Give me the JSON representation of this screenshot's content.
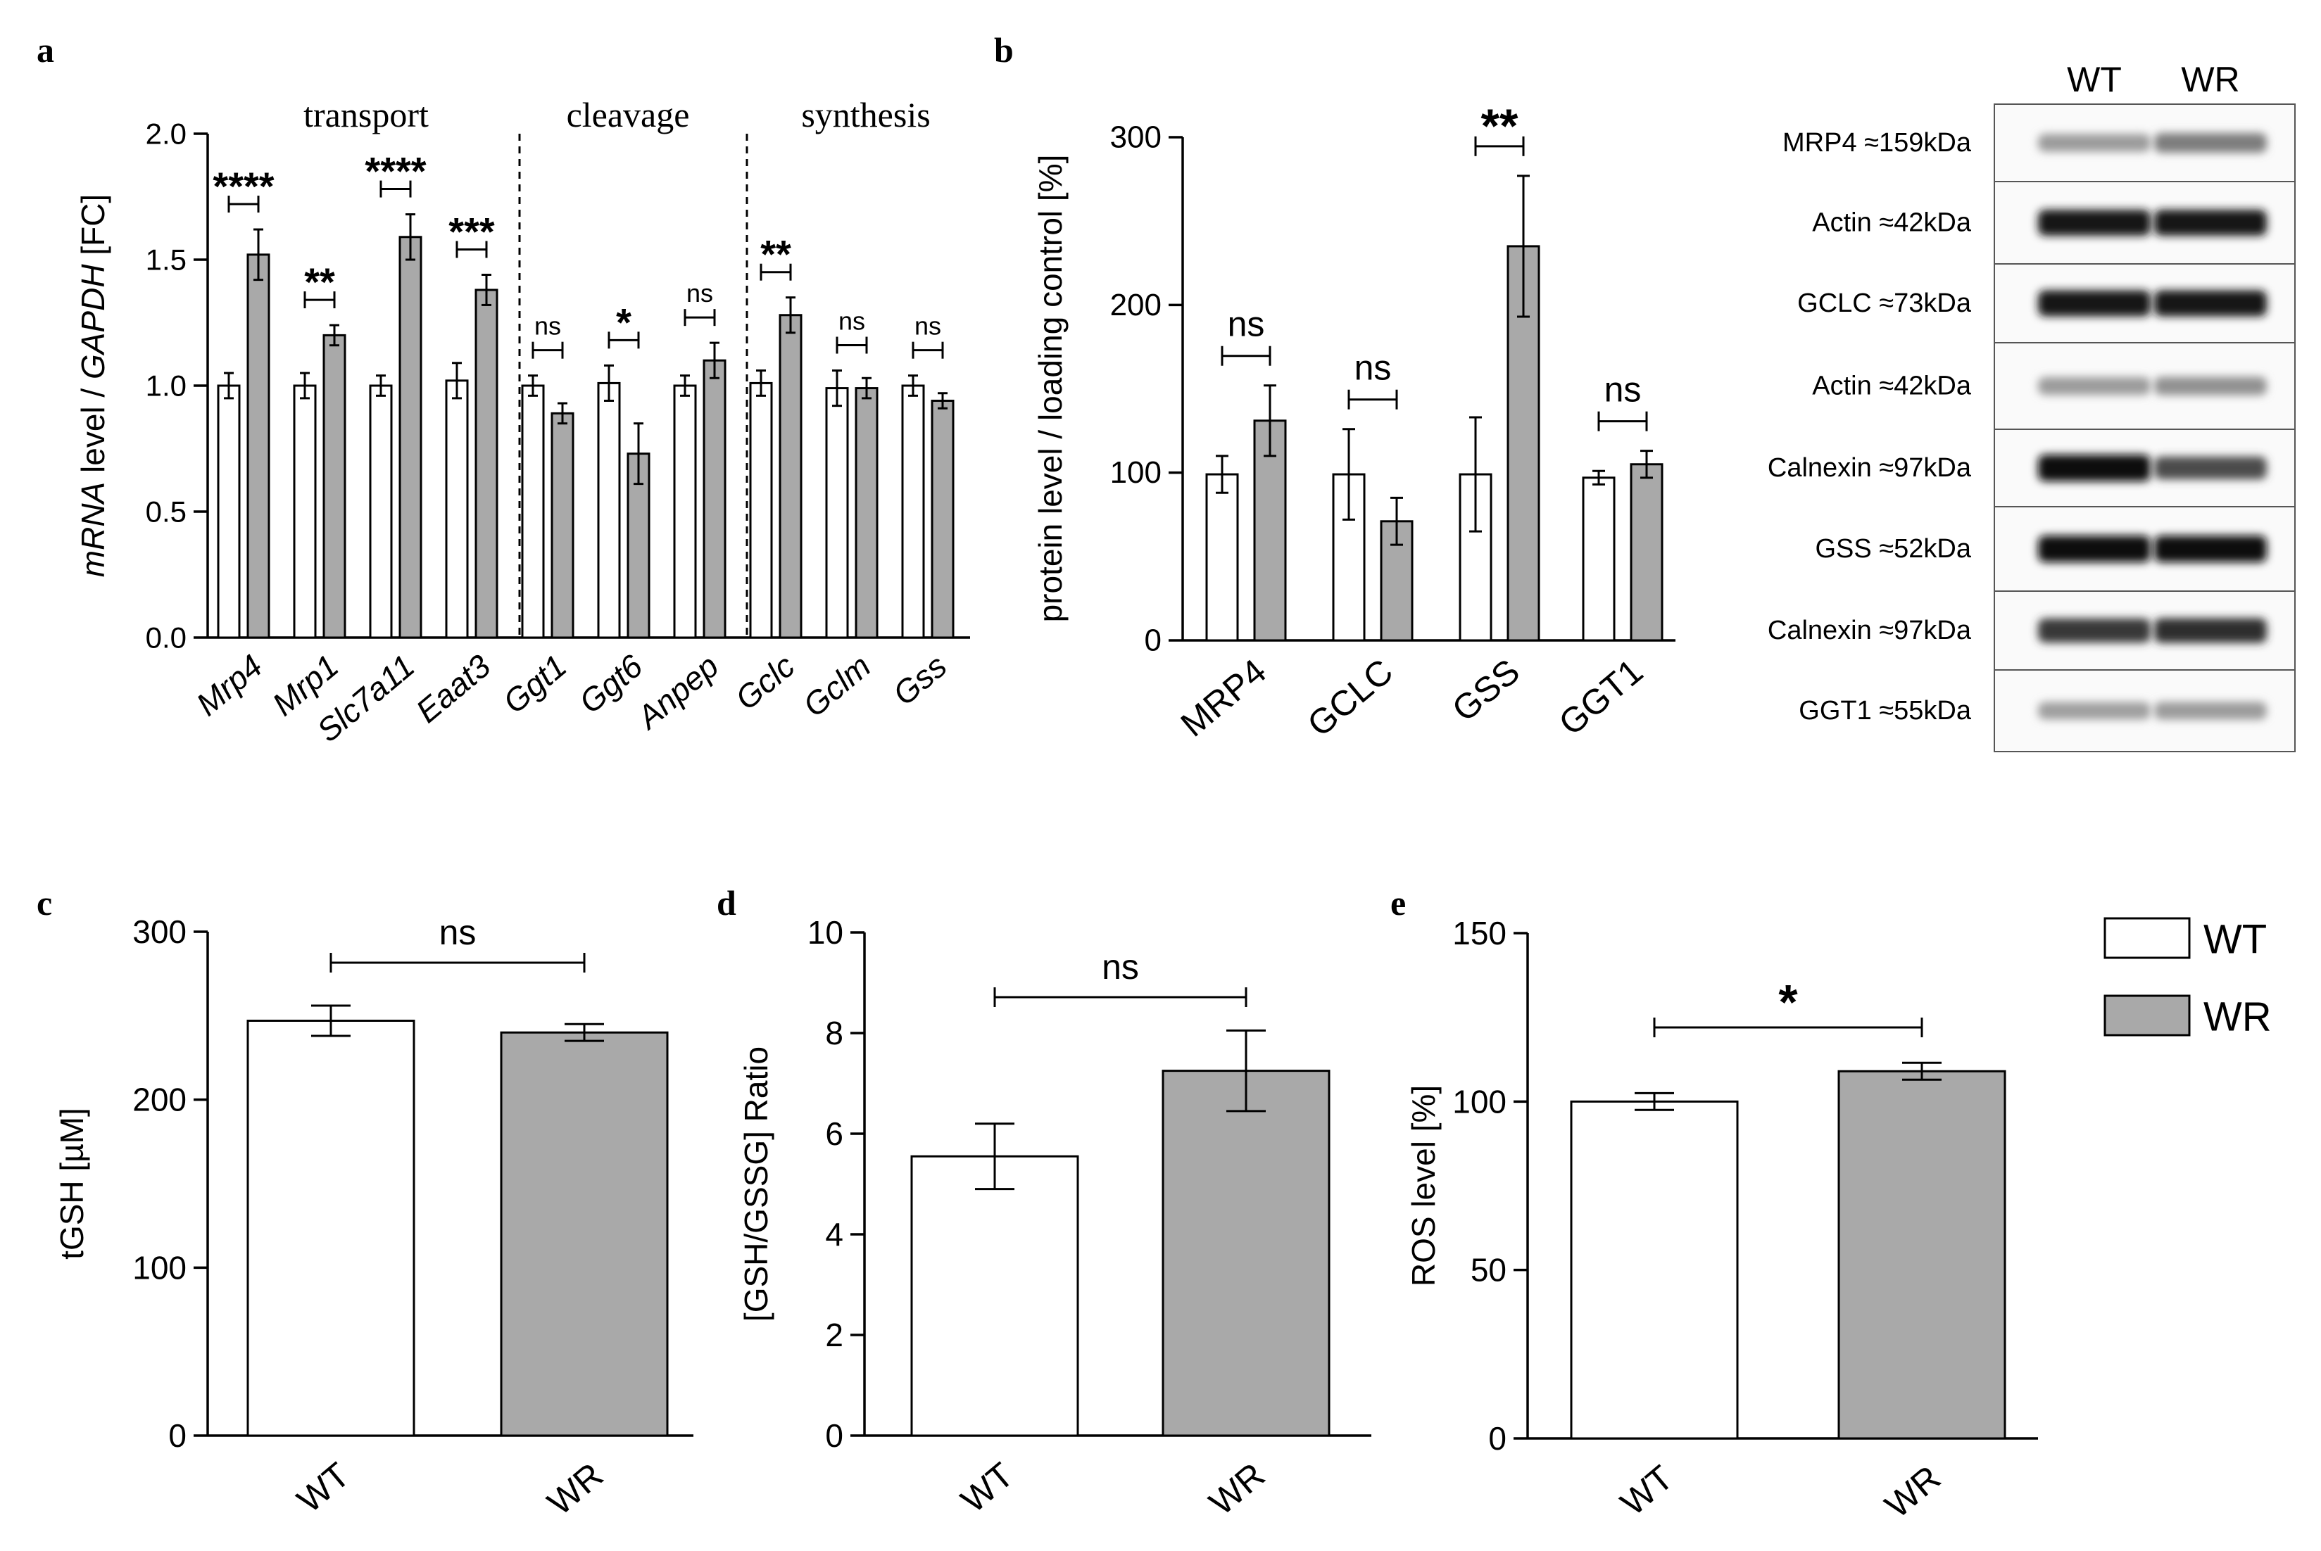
{
  "colors": {
    "wt": "#ffffff",
    "wr": "#a9a9a9",
    "axis": "#000000",
    "blot_bg": "#ededed",
    "band": "#1a1a1a"
  },
  "legend": [
    {
      "label": "WT",
      "color": "#ffffff"
    },
    {
      "label": "WR",
      "color": "#a9a9a9"
    }
  ],
  "chart_data": [
    {
      "panel": "a",
      "type": "bar",
      "ylabel_parts": [
        "mRNA",
        " level / ",
        "GAPDH",
        " [FC]"
      ],
      "ylim": [
        0,
        2.0
      ],
      "yticks": [
        "0.0",
        "0.5",
        "1.0",
        "1.5",
        "2.0"
      ],
      "groups": [
        "transport",
        "cleavage",
        "synthesis"
      ],
      "categories": [
        "Mrp4",
        "Mrp1",
        "Slc7a11",
        "Eaat3",
        "Ggt1",
        "Ggt6",
        "Anpep",
        "Gclc",
        "Gclm",
        "Gss"
      ],
      "series": [
        {
          "name": "WT",
          "values": [
            1.0,
            1.0,
            1.0,
            1.02,
            1.0,
            1.01,
            1.0,
            1.01,
            0.99,
            1.0
          ],
          "errors": [
            0.05,
            0.05,
            0.04,
            0.07,
            0.04,
            0.07,
            0.04,
            0.05,
            0.07,
            0.04
          ]
        },
        {
          "name": "WR",
          "values": [
            1.52,
            1.2,
            1.59,
            1.38,
            0.89,
            0.73,
            1.1,
            1.28,
            0.99,
            0.94
          ],
          "errors": [
            0.1,
            0.04,
            0.09,
            0.06,
            0.04,
            0.12,
            0.07,
            0.07,
            0.04,
            0.03
          ]
        }
      ],
      "significance": [
        "****",
        "**",
        "****",
        "***",
        "ns",
        "*",
        "ns",
        "**",
        "ns",
        "ns"
      ]
    },
    {
      "panel": "b",
      "type": "bar",
      "ylabel": "protein level / loading control [%]",
      "ylim": [
        0,
        300
      ],
      "yticks": [
        "0",
        "100",
        "200",
        "300"
      ],
      "categories": [
        "MRP4",
        "GCLC",
        "GSS",
        "GGT1"
      ],
      "series": [
        {
          "name": "WT",
          "values": [
            99,
            99,
            99,
            97
          ],
          "errors": [
            11,
            27,
            34,
            4
          ]
        },
        {
          "name": "WR",
          "values": [
            131,
            71,
            235,
            105
          ],
          "errors": [
            21,
            14,
            42,
            8
          ]
        }
      ],
      "significance": [
        "ns",
        "ns",
        "**",
        "ns"
      ]
    },
    {
      "panel": "c",
      "type": "bar",
      "ylabel": "tGSH [µM]",
      "ylim": [
        0,
        300
      ],
      "yticks": [
        "0",
        "100",
        "200",
        "300"
      ],
      "categories": [
        "WT",
        "WR"
      ],
      "values": [
        247,
        240
      ],
      "errors": [
        9,
        5
      ],
      "significance": "ns"
    },
    {
      "panel": "d",
      "type": "bar",
      "ylabel": "[GSH/GSSG] Ratio",
      "ylim": [
        0,
        10
      ],
      "yticks": [
        "0",
        "2",
        "4",
        "6",
        "8",
        "10"
      ],
      "categories": [
        "WT",
        "WR"
      ],
      "values": [
        5.55,
        7.25
      ],
      "errors": [
        0.65,
        0.8
      ],
      "significance": "ns"
    },
    {
      "panel": "e",
      "type": "bar",
      "ylabel": "ROS level [%]",
      "ylim": [
        0,
        150
      ],
      "yticks": [
        "0",
        "50",
        "100",
        "150"
      ],
      "categories": [
        "WT",
        "WR"
      ],
      "values": [
        100,
        109
      ],
      "errors": [
        2.5,
        2.5
      ],
      "significance": "*"
    }
  ],
  "blot": {
    "lanes": [
      "WT",
      "WR"
    ],
    "rows": [
      {
        "label": "MRP4 ≈159kDa",
        "bands": [
          0.3,
          0.45
        ]
      },
      {
        "label": "Actin ≈42kDa",
        "bands": [
          0.95,
          0.95
        ]
      },
      {
        "label": "GCLC ≈73kDa",
        "bands": [
          0.95,
          0.95
        ]
      },
      {
        "label": "Actin ≈42kDa",
        "bands": [
          0.3,
          0.35
        ]
      },
      {
        "label": "Calnexin ≈97kDa",
        "bands": [
          1.0,
          0.7
        ]
      },
      {
        "label": "GSS ≈52kDa",
        "bands": [
          1.0,
          1.0
        ]
      },
      {
        "label": "Calnexin ≈97kDa",
        "bands": [
          0.8,
          0.85
        ]
      },
      {
        "label": "GGT1 ≈55kDa",
        "bands": [
          0.28,
          0.3
        ]
      }
    ]
  }
}
